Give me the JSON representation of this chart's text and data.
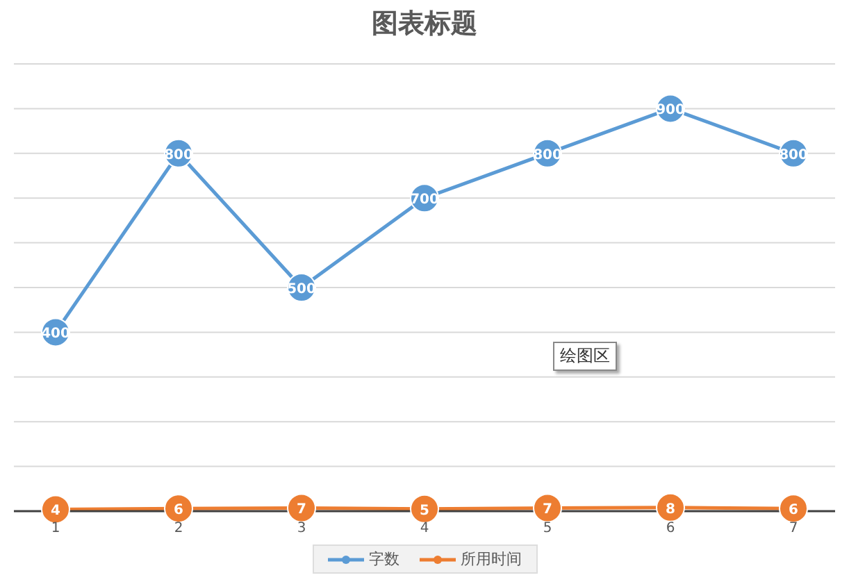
{
  "chart_data": {
    "type": "line",
    "title": "图表标题",
    "categories": [
      "1",
      "2",
      "3",
      "4",
      "5",
      "6",
      "7"
    ],
    "series": [
      {
        "name": "字数",
        "color": "#5b9bd5",
        "values": [
          400,
          800,
          500,
          700,
          800,
          900,
          800
        ]
      },
      {
        "name": "所用时间",
        "color": "#ed7d31",
        "values": [
          4,
          6,
          7,
          5,
          7,
          8,
          6
        ]
      }
    ],
    "ylim": [
      0,
      1000
    ],
    "yticks": [
      {
        "value": 0,
        "label": null
      },
      {
        "value": 100,
        "label": null
      },
      {
        "value": 200,
        "label": null
      },
      {
        "value": 300,
        "label": null
      },
      {
        "value": 400,
        "label": null
      },
      {
        "value": 500,
        "label": null
      },
      {
        "value": 600,
        "label": null
      },
      {
        "value": 700,
        "label": null
      },
      {
        "value": 800,
        "label": null
      },
      {
        "value": 900,
        "label": null
      },
      {
        "value": 1000,
        "label": null
      }
    ],
    "tick_labels": "x",
    "grid": "y",
    "legend": "bottom",
    "marker": "circle",
    "line_style": "solid",
    "data_labels": true,
    "annotations": [
      "绘图区"
    ]
  }
}
